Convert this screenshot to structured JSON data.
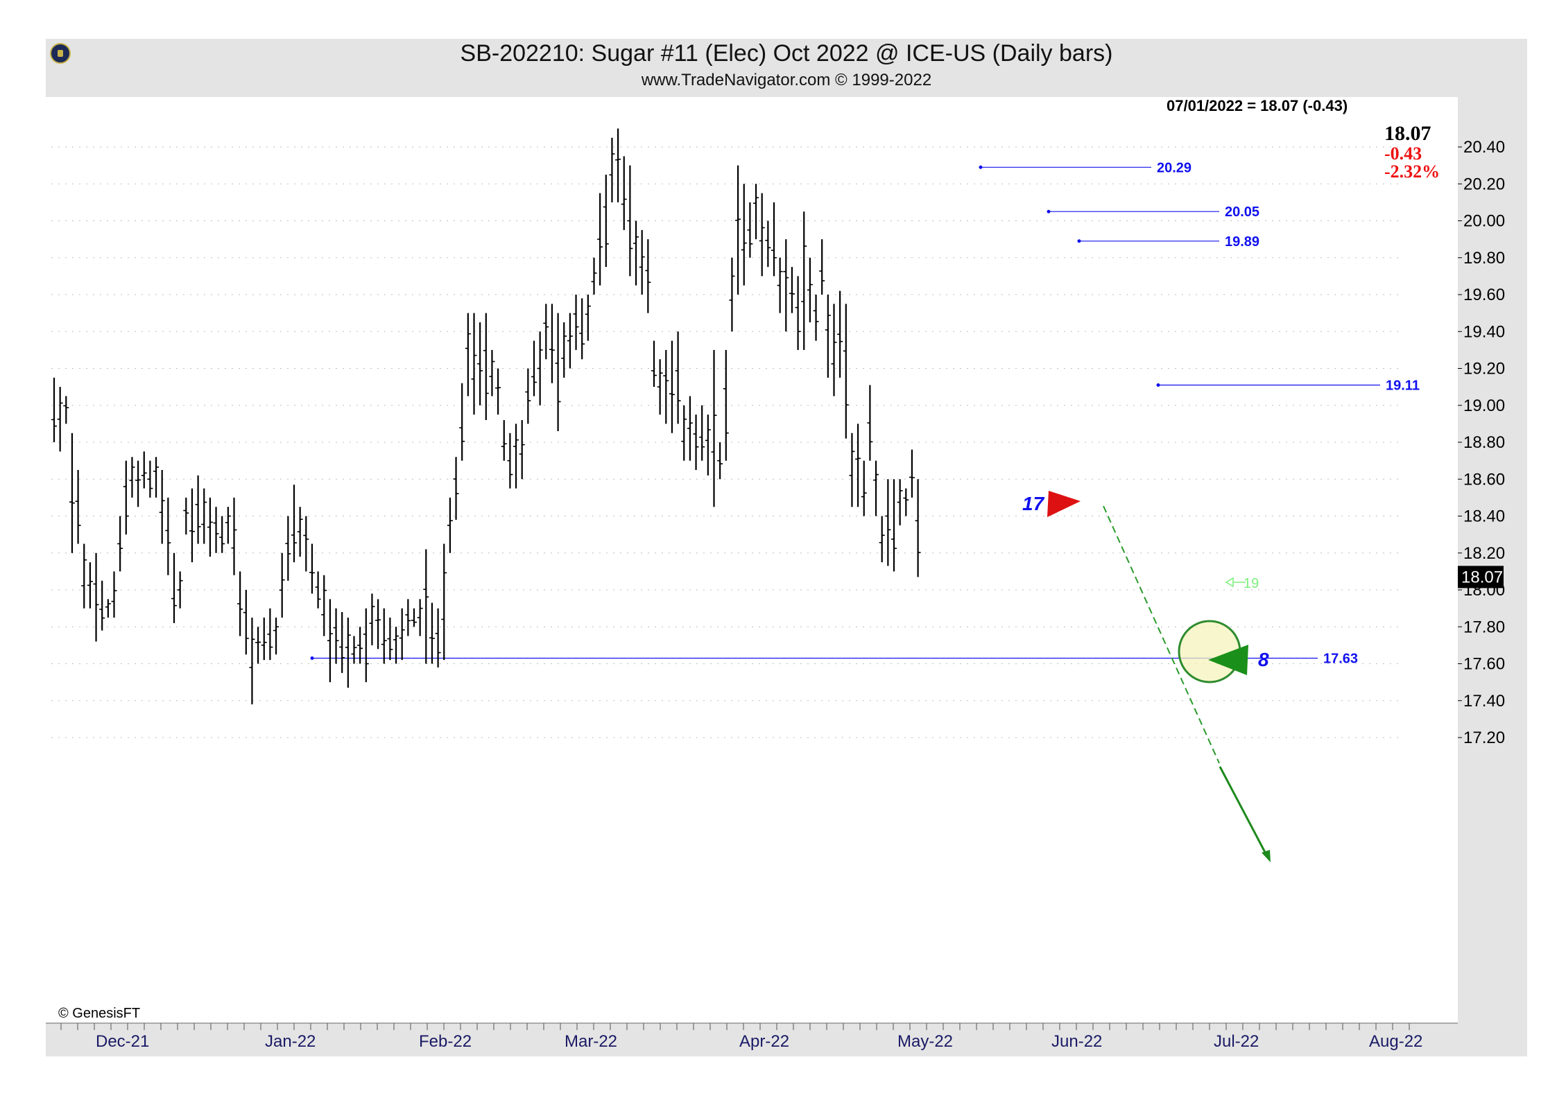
{
  "header": {
    "title": "SB-202210:  Sugar #11 (Elec) Oct 2022 @ ICE-US  (Daily bars)",
    "subtitle": "www.TradeNavigator.com © 1999-2022"
  },
  "status_line": "07/01/2022 = 18.07 (-0.43)",
  "quote": {
    "last": "18.07",
    "change": "-0.43",
    "change_pct": "-2.32%"
  },
  "last_price_tag": "18.07",
  "copyright": "© GenesisFT",
  "colors": {
    "bars": "#000000",
    "levels": "#1010ee",
    "down_red": "#ee1111",
    "green": "#1a8f1a",
    "last_tag_bg": "#000000"
  },
  "chart_data": {
    "type": "ohlc",
    "ylim": [
      17.1,
      20.55
    ],
    "y_ticks": [
      "17.20",
      "17.40",
      "17.60",
      "17.80",
      "18.00",
      "18.20",
      "18.40",
      "18.60",
      "18.80",
      "19.00",
      "19.20",
      "19.40",
      "19.60",
      "19.80",
      "20.00",
      "20.20",
      "20.40"
    ],
    "x_labels": [
      "Dec-21",
      "Jan-22",
      "Feb-22",
      "Mar-22",
      "Apr-22",
      "May-22",
      "Jun-22",
      "Jul-22",
      "Aug-22"
    ],
    "grid": true,
    "bars": [
      [
        19.15,
        18.8
      ],
      [
        19.1,
        18.75
      ],
      [
        19.05,
        18.9
      ],
      [
        18.85,
        18.2
      ],
      [
        18.65,
        18.25
      ],
      [
        18.25,
        17.9
      ],
      [
        18.15,
        17.9
      ],
      [
        18.2,
        17.72
      ],
      [
        18.05,
        17.78
      ],
      [
        17.95,
        17.85
      ],
      [
        18.1,
        17.85
      ],
      [
        18.4,
        18.1
      ],
      [
        18.7,
        18.3
      ],
      [
        18.72,
        18.5
      ],
      [
        18.7,
        18.45
      ],
      [
        18.75,
        18.55
      ],
      [
        18.7,
        18.5
      ],
      [
        18.72,
        18.5
      ],
      [
        18.65,
        18.25
      ],
      [
        18.5,
        18.08
      ],
      [
        18.2,
        17.82
      ],
      [
        18.1,
        17.9
      ],
      [
        18.5,
        18.3
      ],
      [
        18.55,
        18.15
      ],
      [
        18.62,
        18.25
      ],
      [
        18.55,
        18.25
      ],
      [
        18.5,
        18.18
      ],
      [
        18.45,
        18.2
      ],
      [
        18.4,
        18.2
      ],
      [
        18.45,
        18.25
      ],
      [
        18.5,
        18.08
      ],
      [
        18.1,
        17.75
      ],
      [
        18.0,
        17.65
      ],
      [
        17.85,
        17.38
      ],
      [
        17.8,
        17.6
      ],
      [
        17.85,
        17.62
      ],
      [
        17.9,
        17.62
      ],
      [
        17.85,
        17.65
      ],
      [
        18.2,
        17.85
      ],
      [
        18.4,
        18.05
      ],
      [
        18.57,
        18.15
      ],
      [
        18.45,
        18.18
      ],
      [
        18.4,
        18.1
      ],
      [
        18.25,
        17.98
      ],
      [
        18.1,
        17.9
      ],
      [
        18.08,
        17.75
      ],
      [
        17.95,
        17.5
      ],
      [
        17.9,
        17.6
      ],
      [
        17.88,
        17.55
      ],
      [
        17.85,
        17.47
      ],
      [
        17.75,
        17.6
      ],
      [
        17.8,
        17.6
      ],
      [
        17.9,
        17.5
      ],
      [
        17.98,
        17.7
      ],
      [
        17.95,
        17.68
      ],
      [
        17.9,
        17.6
      ],
      [
        17.85,
        17.62
      ],
      [
        17.8,
        17.6
      ],
      [
        17.9,
        17.62
      ],
      [
        17.95,
        17.75
      ],
      [
        17.9,
        17.8
      ],
      [
        17.95,
        17.75
      ],
      [
        18.22,
        17.6
      ],
      [
        17.93,
        17.6
      ],
      [
        17.9,
        17.58
      ],
      [
        18.25,
        17.62
      ],
      [
        18.5,
        18.2
      ],
      [
        18.72,
        18.38
      ],
      [
        19.12,
        18.7
      ],
      [
        19.5,
        19.05
      ],
      [
        19.5,
        18.95
      ],
      [
        19.45,
        19.0
      ],
      [
        19.5,
        18.92
      ],
      [
        19.3,
        19.05
      ],
      [
        19.2,
        18.95
      ],
      [
        18.92,
        18.7
      ],
      [
        18.85,
        18.55
      ],
      [
        18.9,
        18.55
      ],
      [
        18.92,
        18.6
      ],
      [
        19.2,
        18.9
      ],
      [
        19.35,
        19.05
      ],
      [
        19.4,
        19.0
      ],
      [
        19.55,
        19.25
      ],
      [
        19.55,
        19.12
      ],
      [
        19.5,
        18.86
      ],
      [
        19.45,
        19.15
      ],
      [
        19.5,
        19.2
      ],
      [
        19.6,
        19.3
      ],
      [
        19.58,
        19.25
      ],
      [
        19.6,
        19.35
      ],
      [
        19.8,
        19.6
      ],
      [
        20.15,
        19.65
      ],
      [
        20.25,
        19.75
      ],
      [
        20.45,
        20.1
      ],
      [
        20.5,
        20.1
      ],
      [
        20.35,
        19.95
      ],
      [
        20.3,
        19.7
      ],
      [
        20.0,
        19.65
      ],
      [
        19.95,
        19.6
      ],
      [
        19.9,
        19.5
      ],
      [
        19.35,
        19.1
      ],
      [
        19.25,
        18.95
      ],
      [
        19.3,
        18.9
      ],
      [
        19.35,
        18.85
      ],
      [
        19.4,
        18.9
      ],
      [
        19.0,
        18.7
      ],
      [
        19.05,
        18.7
      ],
      [
        18.95,
        18.65
      ],
      [
        19.0,
        18.7
      ],
      [
        18.95,
        18.62
      ],
      [
        19.3,
        18.45
      ],
      [
        18.8,
        18.6
      ],
      [
        19.3,
        18.7
      ],
      [
        19.8,
        19.4
      ],
      [
        20.3,
        19.6
      ],
      [
        20.2,
        19.65
      ],
      [
        20.1,
        19.8
      ],
      [
        20.2,
        19.9
      ],
      [
        20.15,
        19.7
      ],
      [
        20.0,
        19.75
      ],
      [
        20.1,
        19.7
      ],
      [
        19.8,
        19.5
      ],
      [
        19.9,
        19.4
      ],
      [
        19.75,
        19.5
      ],
      [
        19.7,
        19.3
      ],
      [
        20.05,
        19.3
      ],
      [
        19.8,
        19.45
      ],
      [
        19.6,
        19.35
      ],
      [
        19.9,
        19.6
      ],
      [
        19.6,
        19.15
      ],
      [
        19.55,
        19.05
      ],
      [
        19.62,
        19.15
      ],
      [
        19.55,
        18.82
      ],
      [
        18.85,
        18.45
      ],
      [
        18.9,
        18.45
      ],
      [
        18.7,
        18.4
      ],
      [
        19.11,
        18.7
      ],
      [
        18.7,
        18.4
      ],
      [
        18.4,
        18.15
      ],
      [
        18.6,
        18.13
      ],
      [
        18.6,
        18.1
      ],
      [
        18.6,
        18.35
      ],
      [
        18.55,
        18.4
      ],
      [
        18.76,
        18.5
      ],
      [
        18.6,
        18.07
      ]
    ],
    "horizontal_levels": [
      {
        "label": "20.29",
        "value": 20.29
      },
      {
        "label": "20.05",
        "value": 20.05
      },
      {
        "label": "19.89",
        "value": 19.89
      },
      {
        "label": "19.11",
        "value": 19.11
      },
      {
        "label": "17.63",
        "value": 17.63
      }
    ],
    "count_labels": [
      "17",
      "8"
    ],
    "faint_label": "19",
    "current_price": 18.07
  }
}
